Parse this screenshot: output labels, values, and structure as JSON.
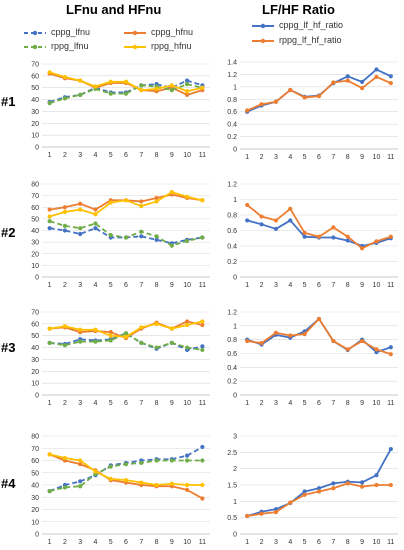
{
  "titles": {
    "left": "LFnu and HFnu",
    "right": "LF/HF Ratio"
  },
  "rows": [
    "#1",
    "#2",
    "#3",
    "#4"
  ],
  "legends": {
    "left": [
      {
        "name": "cppg_lfnu",
        "color": "#4472C4",
        "dashed": true
      },
      {
        "name": "cppg_hfnu",
        "color": "#ED7D31",
        "dashed": false
      },
      {
        "name": "rppg_lfnu",
        "color": "#70AD47",
        "dashed": true
      },
      {
        "name": "rppg_hfnu",
        "color": "#FFC000",
        "dashed": false
      }
    ],
    "right": [
      {
        "name": "cppg_lf_hf_ratio",
        "color": "#4472C4",
        "dashed": false
      },
      {
        "name": "rppg_lf_hf_ratio",
        "color": "#ED7D31",
        "dashed": false
      }
    ]
  },
  "chart_data": [
    {
      "type": "line",
      "row": "#1",
      "panel": "LFnu and HFnu",
      "x": [
        1,
        2,
        3,
        4,
        5,
        6,
        7,
        8,
        9,
        10,
        11
      ],
      "ylim": [
        0,
        70
      ],
      "yticks": [
        0,
        10,
        20,
        30,
        40,
        50,
        60,
        70
      ],
      "series": [
        {
          "name": "cppg_lfnu",
          "values": [
            38,
            42,
            44,
            50,
            46,
            46,
            52,
            53,
            50,
            56,
            52
          ]
        },
        {
          "name": "cppg_hfnu",
          "values": [
            62,
            58,
            56,
            50,
            54,
            54,
            48,
            47,
            50,
            44,
            48
          ]
        },
        {
          "name": "rppg_lfnu",
          "values": [
            37,
            41,
            44,
            49,
            45,
            45,
            52,
            51,
            48,
            53,
            50
          ]
        },
        {
          "name": "rppg_hfnu",
          "values": [
            63,
            59,
            56,
            51,
            55,
            55,
            48,
            49,
            52,
            47,
            50
          ]
        }
      ]
    },
    {
      "type": "line",
      "row": "#1",
      "panel": "LF/HF Ratio",
      "x": [
        1,
        2,
        3,
        4,
        5,
        6,
        7,
        8,
        9,
        10,
        11
      ],
      "ylim": [
        0,
        1.4
      ],
      "yticks": [
        0,
        0.2,
        0.4,
        0.6,
        0.8,
        1,
        1.2,
        1.4
      ],
      "series": [
        {
          "name": "cppg_lf_hf_ratio",
          "values": [
            0.6,
            0.7,
            0.76,
            0.95,
            0.84,
            0.86,
            1.06,
            1.17,
            1.08,
            1.28,
            1.17
          ]
        },
        {
          "name": "rppg_lf_hf_ratio",
          "values": [
            0.62,
            0.72,
            0.76,
            0.95,
            0.83,
            0.85,
            1.07,
            1.1,
            0.98,
            1.16,
            1.06
          ]
        }
      ]
    },
    {
      "type": "line",
      "row": "#2",
      "panel": "LFnu and HFnu",
      "x": [
        1,
        2,
        3,
        4,
        5,
        6,
        7,
        8,
        9,
        10,
        11
      ],
      "ylim": [
        0,
        80
      ],
      "yticks": [
        0,
        10,
        20,
        30,
        40,
        50,
        60,
        70,
        80
      ],
      "series": [
        {
          "name": "cppg_lfnu",
          "values": [
            42,
            40,
            37,
            42,
            34,
            34,
            35,
            32,
            29,
            32,
            34
          ]
        },
        {
          "name": "cppg_hfnu",
          "values": [
            58,
            60,
            63,
            58,
            66,
            66,
            65,
            68,
            71,
            68,
            66
          ]
        },
        {
          "name": "rppg_lfnu",
          "values": [
            48,
            44,
            42,
            46,
            36,
            34,
            39,
            35,
            27,
            31,
            34
          ]
        },
        {
          "name": "rppg_hfnu",
          "values": [
            52,
            56,
            58,
            54,
            64,
            66,
            61,
            65,
            73,
            69,
            66
          ]
        }
      ]
    },
    {
      "type": "line",
      "row": "#2",
      "panel": "LF/HF Ratio",
      "x": [
        1,
        2,
        3,
        4,
        5,
        6,
        7,
        8,
        9,
        10,
        11
      ],
      "ylim": [
        0,
        1.2
      ],
      "yticks": [
        0,
        0.2,
        0.4,
        0.6,
        0.8,
        1,
        1.2
      ],
      "series": [
        {
          "name": "cppg_lf_hf_ratio",
          "values": [
            0.73,
            0.68,
            0.62,
            0.73,
            0.52,
            0.51,
            0.51,
            0.47,
            0.4,
            0.44,
            0.5
          ]
        },
        {
          "name": "rppg_lf_hf_ratio",
          "values": [
            0.93,
            0.78,
            0.73,
            0.88,
            0.57,
            0.52,
            0.64,
            0.52,
            0.37,
            0.46,
            0.52
          ]
        }
      ]
    },
    {
      "type": "line",
      "row": "#3",
      "panel": "LFnu and HFnu",
      "x": [
        1,
        2,
        3,
        4,
        5,
        6,
        7,
        8,
        9,
        10,
        11
      ],
      "ylim": [
        0,
        70
      ],
      "yticks": [
        0,
        10,
        20,
        30,
        40,
        50,
        60,
        70
      ],
      "series": [
        {
          "name": "cppg_lfnu",
          "values": [
            44,
            43,
            47,
            46,
            47,
            52,
            44,
            39,
            44,
            38,
            41
          ]
        },
        {
          "name": "cppg_hfnu",
          "values": [
            56,
            57,
            53,
            54,
            53,
            48,
            56,
            61,
            56,
            62,
            59
          ]
        },
        {
          "name": "rppg_lfnu",
          "values": [
            44,
            42,
            45,
            45,
            46,
            52,
            44,
            40,
            44,
            40,
            38
          ]
        },
        {
          "name": "rppg_hfnu",
          "values": [
            56,
            58,
            55,
            55,
            50,
            49,
            57,
            60,
            56,
            59,
            62
          ]
        }
      ]
    },
    {
      "type": "line",
      "row": "#3",
      "panel": "LF/HF Ratio",
      "x": [
        1,
        2,
        3,
        4,
        5,
        6,
        7,
        8,
        9,
        10,
        11
      ],
      "ylim": [
        0,
        1.2
      ],
      "yticks": [
        0,
        0.2,
        0.4,
        0.6,
        0.8,
        1,
        1.2
      ],
      "series": [
        {
          "name": "cppg_lf_hf_ratio",
          "values": [
            0.8,
            0.73,
            0.87,
            0.83,
            0.92,
            1.1,
            0.78,
            0.65,
            0.8,
            0.62,
            0.69
          ]
        },
        {
          "name": "rppg_lf_hf_ratio",
          "values": [
            0.78,
            0.75,
            0.9,
            0.86,
            0.88,
            1.1,
            0.78,
            0.66,
            0.78,
            0.66,
            0.59
          ]
        }
      ]
    },
    {
      "type": "line",
      "row": "#4",
      "panel": "LFnu and HFnu",
      "x": [
        1,
        2,
        3,
        4,
        5,
        6,
        7,
        8,
        9,
        10,
        11
      ],
      "ylim": [
        0,
        80
      ],
      "yticks": [
        0,
        10,
        20,
        30,
        40,
        50,
        60,
        70,
        80
      ],
      "series": [
        {
          "name": "cppg_lfnu",
          "values": [
            35,
            40,
            43,
            48,
            56,
            58,
            60,
            61,
            61,
            64,
            71
          ]
        },
        {
          "name": "cppg_hfnu",
          "values": [
            65,
            60,
            57,
            52,
            44,
            42,
            40,
            39,
            39,
            36,
            29
          ]
        },
        {
          "name": "rppg_lfnu",
          "values": [
            35,
            38,
            39,
            49,
            55,
            57,
            58,
            60,
            60,
            60,
            60
          ]
        },
        {
          "name": "rppg_hfnu",
          "values": [
            65,
            62,
            60,
            51,
            45,
            44,
            42,
            40,
            41,
            40,
            40
          ]
        }
      ]
    },
    {
      "type": "line",
      "row": "#4",
      "panel": "LF/HF Ratio",
      "x": [
        1,
        2,
        3,
        4,
        5,
        6,
        7,
        8,
        9,
        10,
        11
      ],
      "ylim": [
        0,
        3
      ],
      "yticks": [
        0,
        0.5,
        1,
        1.5,
        2,
        2.5,
        3
      ],
      "series": [
        {
          "name": "cppg_lf_hf_ratio",
          "values": [
            0.55,
            0.68,
            0.76,
            0.95,
            1.3,
            1.4,
            1.55,
            1.6,
            1.58,
            1.8,
            2.6
          ]
        },
        {
          "name": "rppg_lf_hf_ratio",
          "values": [
            0.55,
            0.62,
            0.67,
            0.96,
            1.2,
            1.3,
            1.4,
            1.55,
            1.45,
            1.5,
            1.5
          ]
        }
      ]
    }
  ]
}
